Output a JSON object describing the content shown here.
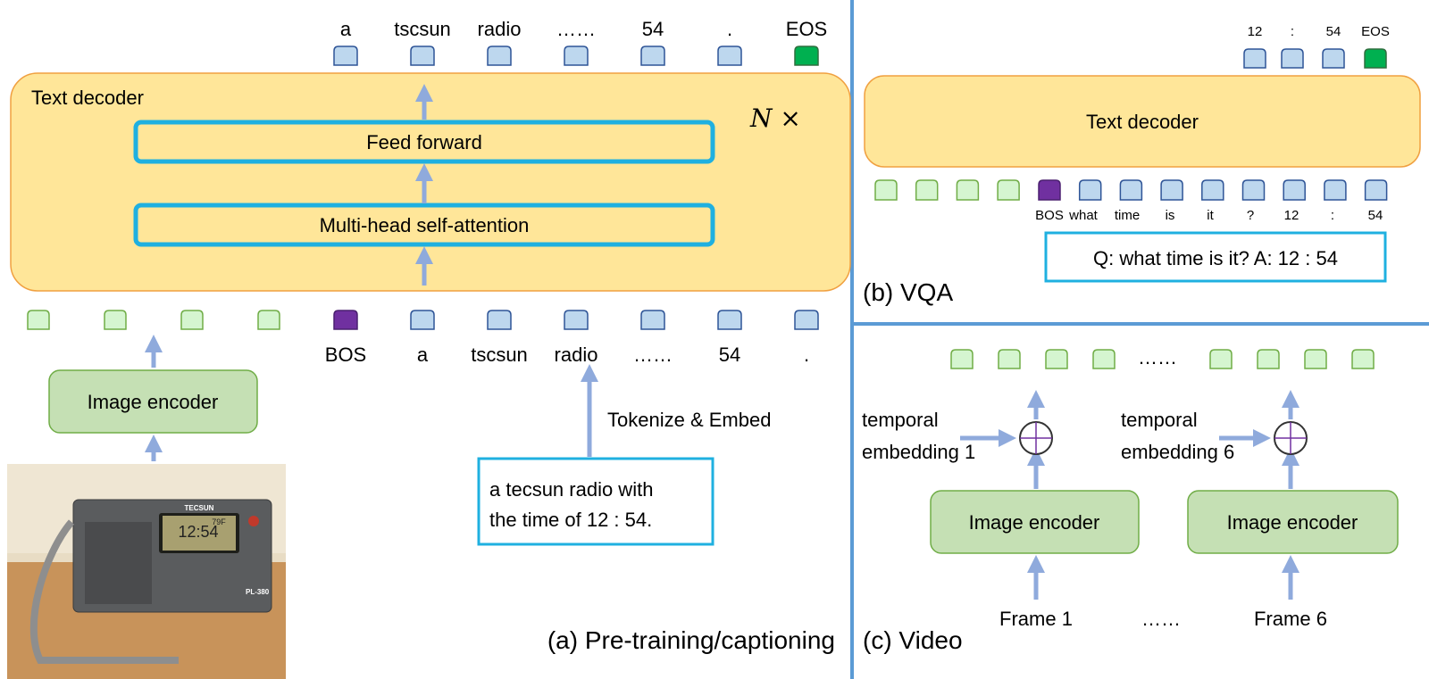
{
  "colors": {
    "decoder_fill": "#FFE699",
    "decoder_stroke": "#F4B183",
    "layer_stroke": "#1FB0E0",
    "encoder_fill": "#C5E0B4",
    "encoder_stroke": "#70AD47",
    "text_token": "#BDD7EE",
    "image_token": "#D5F5D0",
    "bos_token": "#7030A0",
    "eos_token": "#00B050",
    "arrow": "#8FAADC",
    "divider": "#5B9BD5"
  },
  "panel_a": {
    "output_tokens": [
      "a",
      "tscsun",
      "radio",
      "……",
      "54",
      ".",
      "EOS"
    ],
    "decoder_label": "Text decoder",
    "repeat_label": "N ×",
    "feed_forward": "Feed forward",
    "self_attention": "Multi-head self-attention",
    "input_image_tokens": 4,
    "input_text_tokens": [
      "BOS",
      "a",
      "tscsun",
      "radio",
      "……",
      "54",
      "."
    ],
    "image_encoder": "Image encoder",
    "tokenize_label": "Tokenize & Embed",
    "caption_lines": [
      "a tecsun radio with",
      "the time of 12 : 54."
    ],
    "photo": {
      "brand": "TECSUN",
      "display_time": "12:54",
      "display_temp": "79F",
      "model": "PL-380"
    },
    "caption": "(a) Pre-training/captioning"
  },
  "panel_b": {
    "output_tokens": [
      "12",
      ":",
      "54",
      "EOS"
    ],
    "decoder_label": "Text decoder",
    "input_image_tokens": 4,
    "input_text_tokens": [
      "BOS",
      "what",
      "time",
      "is",
      "it",
      "?",
      "12",
      ":",
      "54"
    ],
    "qa_text": "Q: what time is it? A: 12 : 54",
    "caption": "(b) VQA"
  },
  "panel_c": {
    "ellipsis": "……",
    "temporal_1": [
      "temporal",
      "embedding 1"
    ],
    "temporal_6": [
      "temporal",
      "embedding 6"
    ],
    "image_encoder": "Image encoder",
    "frame_1": "Frame 1",
    "frame_6": "Frame 6",
    "caption": "(c) Video"
  }
}
